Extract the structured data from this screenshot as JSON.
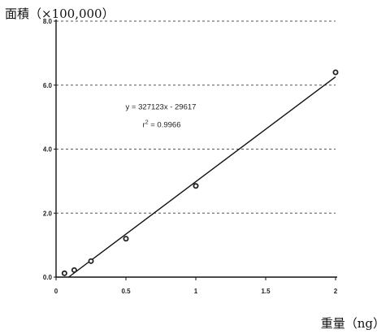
{
  "chart_data": {
    "type": "scatter",
    "ylabel": "面積（×100,000）",
    "xlabel": "重量（ng）",
    "xlim": [
      0,
      2
    ],
    "ylim": [
      0,
      8
    ],
    "xticks": [
      {
        "value": 0,
        "label": "0"
      },
      {
        "value": 0.5,
        "label": "0.5"
      },
      {
        "value": 1,
        "label": "1"
      },
      {
        "value": 1.5,
        "label": "1.5"
      },
      {
        "value": 2,
        "label": "2"
      }
    ],
    "yticks": [
      {
        "value": 0,
        "label": "0.0"
      },
      {
        "value": 2,
        "label": "2.0"
      },
      {
        "value": 4,
        "label": "4.0"
      },
      {
        "value": 6,
        "label": "6.0"
      },
      {
        "value": 8,
        "label": "8.0"
      }
    ],
    "grid": "horizontal-dashed",
    "points": [
      {
        "x": 0.06,
        "y": 0.12
      },
      {
        "x": 0.13,
        "y": 0.22
      },
      {
        "x": 0.25,
        "y": 0.5
      },
      {
        "x": 0.5,
        "y": 1.2
      },
      {
        "x": 1.0,
        "y": 2.85
      },
      {
        "x": 2.0,
        "y": 6.4
      }
    ],
    "trendline": {
      "x": [
        0.09,
        2.0
      ],
      "y": [
        0.0,
        6.26
      ]
    },
    "annotation": {
      "equation": "y = 327123x - 29617",
      "r2_prefix": "r",
      "r2_sup": "2",
      "r2_value": " = 0.9966",
      "x": 0.75,
      "y": 5.25
    }
  }
}
